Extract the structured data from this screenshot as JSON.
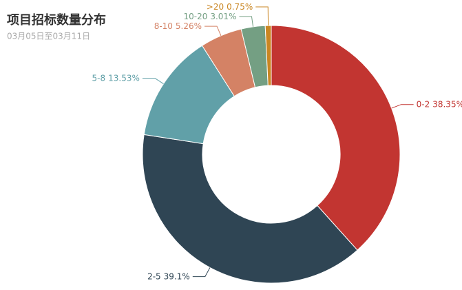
{
  "chart_data": {
    "type": "pie",
    "title": "项目招标数量分布",
    "subtitle": "03月05日至03月11日",
    "categories": [
      "0-2",
      "2-5",
      "5-8",
      "8-10",
      "10-20",
      ">20"
    ],
    "values": [
      38.35,
      39.1,
      13.53,
      5.26,
      3.01,
      0.75
    ],
    "value_labels": [
      "38.35%",
      "39.1%",
      "13.53%",
      "5.26%",
      "3.01%",
      "0.75%"
    ],
    "colors": [
      "#c23531",
      "#2f4554",
      "#61a0a8",
      "#d48265",
      "#749f83",
      "#ca8622"
    ]
  }
}
